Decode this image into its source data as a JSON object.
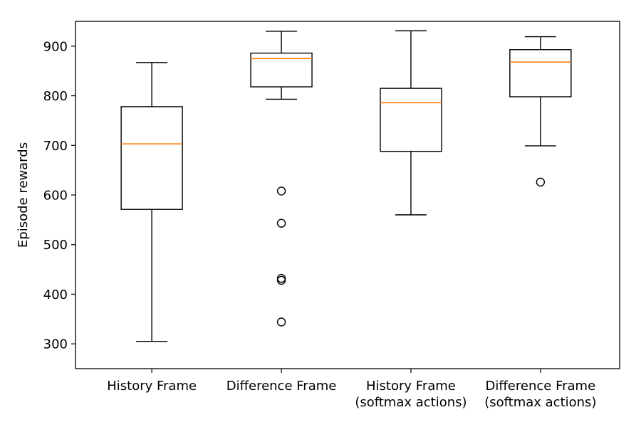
{
  "chart_data": {
    "type": "box",
    "title": "",
    "xlabel": "",
    "ylabel": "Episode rewards",
    "ylim": [
      250,
      950
    ],
    "yticks": [
      300,
      400,
      500,
      600,
      700,
      800,
      900
    ],
    "categories": [
      [
        "History Frame"
      ],
      [
        "Difference Frame"
      ],
      [
        "History Frame",
        "(softmax actions)"
      ],
      [
        "Difference Frame",
        "(softmax actions)"
      ]
    ],
    "boxes": [
      {
        "whisker_low": 305,
        "q1": 571,
        "median": 703,
        "q3": 778,
        "whisker_high": 867,
        "outliers": []
      },
      {
        "whisker_low": 793,
        "q1": 818,
        "median": 875,
        "q3": 886,
        "whisker_high": 930,
        "outliers": [
          608,
          543,
          432,
          428,
          344
        ]
      },
      {
        "whisker_low": 560,
        "q1": 688,
        "median": 786,
        "q3": 815,
        "whisker_high": 931,
        "outliers": []
      },
      {
        "whisker_low": 699,
        "q1": 798,
        "median": 868,
        "q3": 893,
        "whisker_high": 919,
        "outliers": [
          626
        ]
      }
    ],
    "colors": {
      "box": "#000000",
      "median": "#ff7f0e",
      "outlier_edge": "#000000"
    }
  }
}
